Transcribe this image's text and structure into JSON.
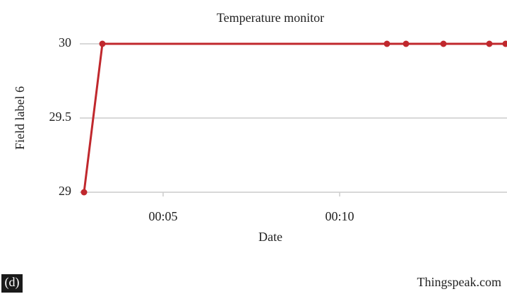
{
  "chart_data": {
    "type": "line",
    "title": "Temperature monitor",
    "x_label": "Date",
    "y_label": "Field label 6",
    "x": [
      2.76,
      3.28,
      11.34,
      11.88,
      12.94,
      14.24,
      14.7
    ],
    "series": [
      {
        "name": "Field label 6",
        "color": "#c0282d",
        "values": [
          29,
          30,
          30,
          30,
          30,
          30,
          30
        ]
      }
    ],
    "xlim": [
      2.64,
      14.74
    ],
    "xticks": [
      {
        "value": 5,
        "label": "00:05"
      },
      {
        "value": 10,
        "label": "00:10"
      }
    ],
    "ylim": [
      29,
      30
    ],
    "yticks": [
      29,
      29.5,
      30
    ],
    "grid": true,
    "annotations": [
      "(d)",
      "Thingspeak.com"
    ]
  }
}
